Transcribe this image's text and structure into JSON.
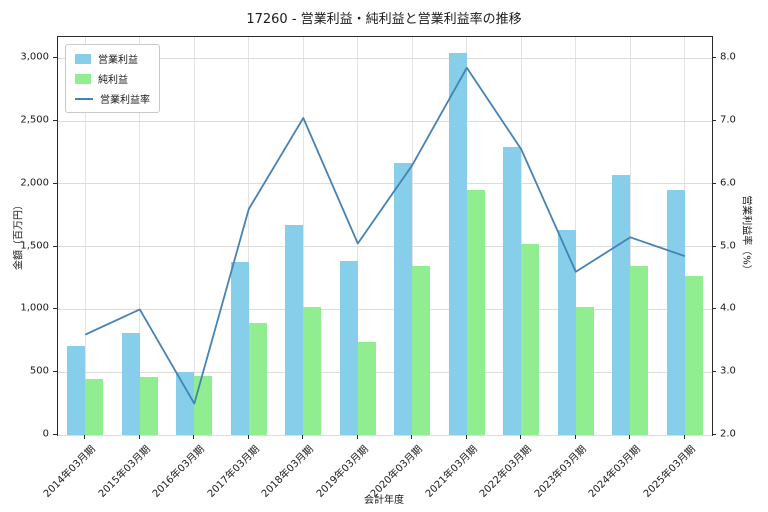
{
  "chart_data": {
    "type": "bar+line",
    "title": "17260 - 営業利益・純利益と営業利益率の推移",
    "xlabel": "会計年度",
    "ylabel_left": "金額（百万円）",
    "ylabel_right": "営業利益率（%）",
    "categories": [
      "2014年03月期",
      "2015年03月期",
      "2016年03月期",
      "2017年03月期",
      "2018年03月期",
      "2019年03月期",
      "2020年03月期",
      "2021年03月期",
      "2022年03月期",
      "2023年03月期",
      "2024年03月期",
      "2025年03月期"
    ],
    "series": [
      {
        "name": "営業利益",
        "type": "bar",
        "axis": "left",
        "color": "#87CEEB",
        "values": [
          710,
          810,
          500,
          1380,
          1670,
          1385,
          2165,
          3040,
          2290,
          1630,
          2070,
          1950
        ]
      },
      {
        "name": "純利益",
        "type": "bar",
        "axis": "left",
        "color": "#90EE90",
        "values": [
          445,
          460,
          470,
          890,
          1020,
          740,
          1345,
          1950,
          1525,
          1020,
          1350,
          1265
        ]
      },
      {
        "name": "営業利益率",
        "type": "line",
        "axis": "right",
        "color": "#4682B4",
        "values": [
          3.6,
          4.0,
          2.5,
          5.6,
          7.05,
          5.05,
          6.3,
          7.85,
          6.55,
          4.6,
          5.15,
          4.85
        ]
      }
    ],
    "left_axis": {
      "ticks": [
        0,
        500,
        1000,
        1500,
        2000,
        2500,
        3000
      ],
      "tick_labels": [
        "0",
        "500",
        "1,000",
        "1,500",
        "2,000",
        "2,500",
        "3,000"
      ],
      "range": [
        0,
        3170
      ]
    },
    "right_axis": {
      "ticks": [
        2,
        3,
        4,
        5,
        6,
        7,
        8
      ],
      "tick_labels": [
        "2.0",
        "3.0",
        "4.0",
        "5.0",
        "6.0",
        "7.0",
        "8.0"
      ],
      "range": [
        2.0,
        8.34
      ]
    },
    "grid": true,
    "legend_position": "upper left",
    "background_color": "#ffffff"
  }
}
